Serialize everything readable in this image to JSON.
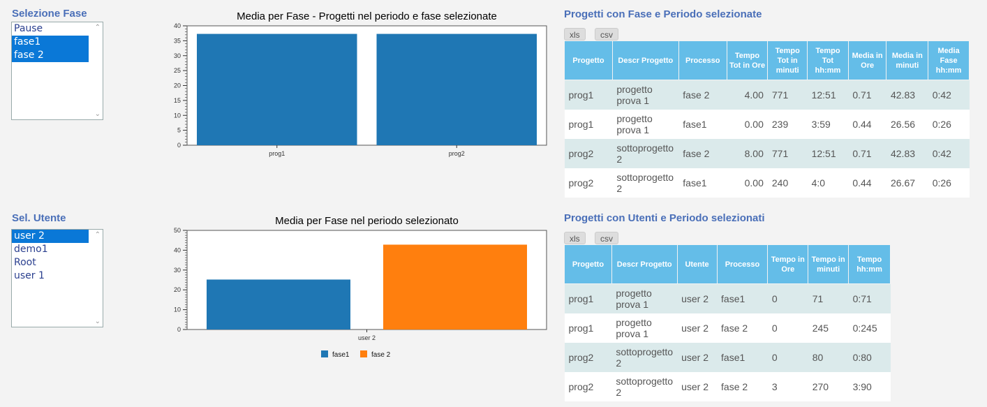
{
  "fase_section": {
    "title": "Selezione Fase",
    "options": [
      {
        "label": "Pause",
        "selected": false
      },
      {
        "label": "fase1",
        "selected": true
      },
      {
        "label": "fase 2",
        "selected": true
      }
    ]
  },
  "utente_section": {
    "title": "Sel. Utente",
    "options": [
      {
        "label": "user 2",
        "selected": true
      },
      {
        "label": "demo1",
        "selected": false
      },
      {
        "label": "Root",
        "selected": false
      },
      {
        "label": "user 1",
        "selected": false
      }
    ]
  },
  "chart_data": [
    {
      "type": "bar",
      "title": "Media per Fase - Progetti nel periodo e fase selezionate",
      "categories": [
        "prog1",
        "prog2"
      ],
      "series": [
        {
          "name": "",
          "values": [
            37.3,
            37.3
          ],
          "color": "#1f77b4"
        }
      ],
      "yticks": [
        0,
        5,
        10,
        15,
        20,
        25,
        30,
        35,
        40
      ],
      "ylim": [
        0,
        40
      ],
      "xlabel": "",
      "ylabel": ""
    },
    {
      "type": "bar",
      "title": "Media per Fase nel periodo selezionato",
      "categories": [
        "user 2"
      ],
      "series": [
        {
          "name": "fase1",
          "values": [
            25.2
          ],
          "color": "#1f77b4"
        },
        {
          "name": "fase 2",
          "values": [
            42.8
          ],
          "color": "#ff7f0e"
        }
      ],
      "yticks": [
        0,
        10,
        20,
        30,
        40,
        50
      ],
      "ylim": [
        0,
        50
      ],
      "legend": "bottom",
      "xlabel": "",
      "ylabel": ""
    }
  ],
  "table1": {
    "title": "Progetti con Fase e Periodo selezionate",
    "buttons": {
      "xls": "xls",
      "csv": "csv"
    },
    "headers": [
      "Progetto",
      "Descr Progetto",
      "Processo",
      "Tempo Tot in Ore",
      "Tempo Tot in minuti",
      "Tempo Tot hh:mm",
      "Media in Ore",
      "Media in minuti",
      "Media Fase hh:mm"
    ],
    "rows": [
      [
        "prog1",
        "progetto prova 1",
        "fase 2",
        "4.00",
        "771",
        "12:51",
        "0.71",
        "42.83",
        "0:42"
      ],
      [
        "prog1",
        "progetto prova 1",
        "fase1",
        "0.00",
        "239",
        "3:59",
        "0.44",
        "26.56",
        "0:26"
      ],
      [
        "prog2",
        "sottoprogetto 2",
        "fase 2",
        "8.00",
        "771",
        "12:51",
        "0.71",
        "42.83",
        "0:42"
      ],
      [
        "prog2",
        "sottoprogetto 2",
        "fase1",
        "0.00",
        "240",
        "4:0",
        "0.44",
        "26.67",
        "0:26"
      ]
    ]
  },
  "table2": {
    "title": "Progetti con Utenti e Periodo selezionati",
    "buttons": {
      "xls": "xls",
      "csv": "csv"
    },
    "headers": [
      "Progetto",
      "Descr Progetto",
      "Utente",
      "Processo",
      "Tempo in Ore",
      "Tempo in minuti",
      "Tempo hh:mm"
    ],
    "rows": [
      [
        "prog1",
        "progetto prova 1",
        "user 2",
        "fase1",
        "0",
        "71",
        "0:71"
      ],
      [
        "prog1",
        "progetto prova 1",
        "user 2",
        "fase 2",
        "0",
        "245",
        "0:245"
      ],
      [
        "prog2",
        "sottoprogetto 2",
        "user 2",
        "fase1",
        "0",
        "80",
        "0:80"
      ],
      [
        "prog2",
        "sottoprogetto 2",
        "user 2",
        "fase 2",
        "3",
        "270",
        "3:90"
      ]
    ]
  }
}
